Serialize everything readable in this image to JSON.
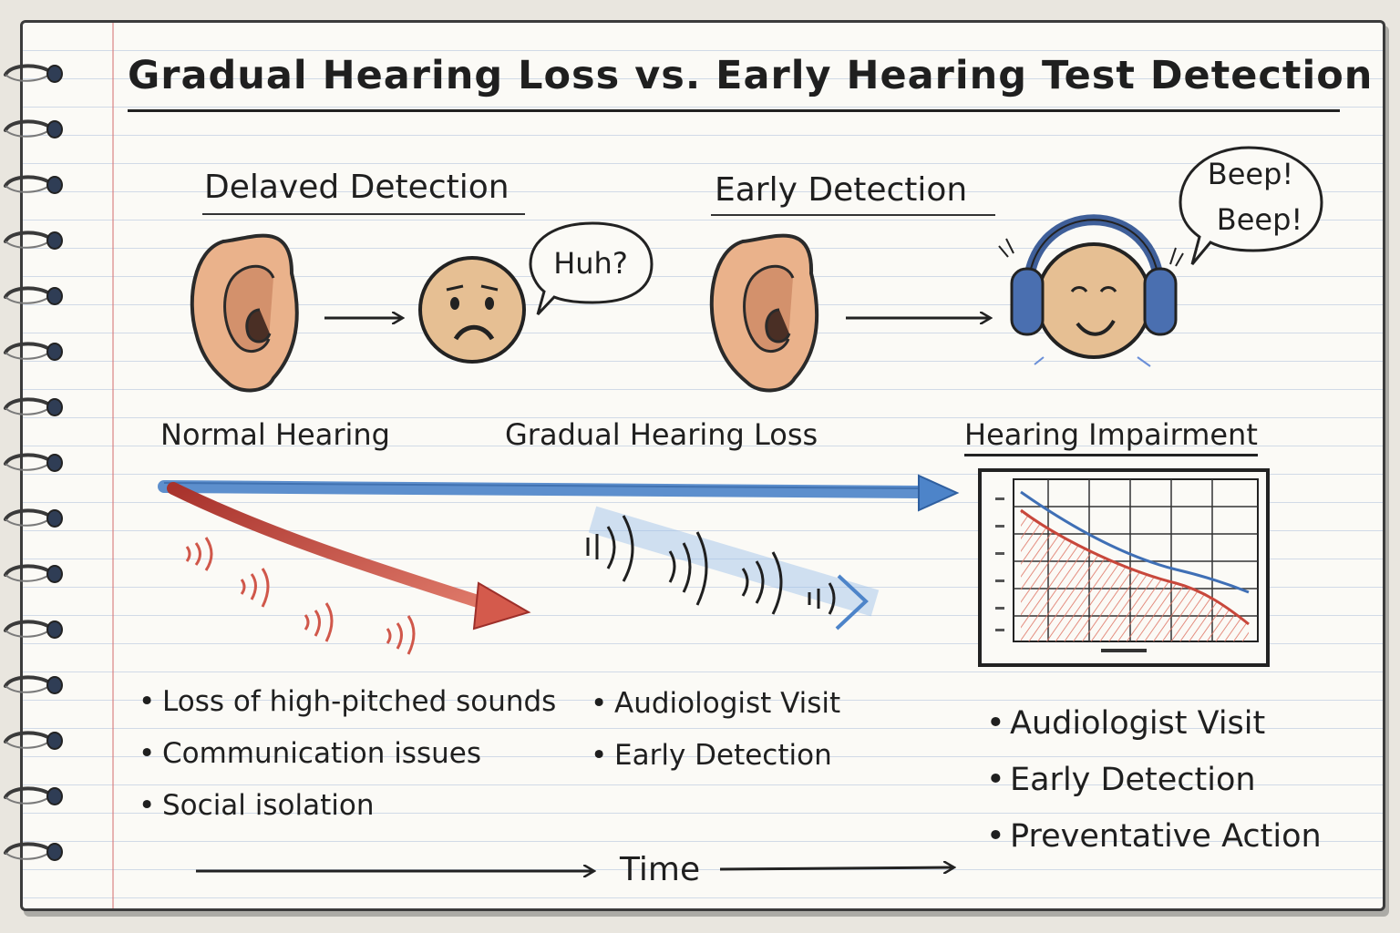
{
  "title": "Gradual Hearing Loss vs. Early Hearing Test Detection",
  "headers": {
    "delayed": "Delaved Detection",
    "early": "Early Detection"
  },
  "speech": {
    "huh": "Huh?",
    "beep1": "Beep!",
    "beep2": "Beep!"
  },
  "stages": {
    "normal": "Normal Hearing",
    "gradual": "Gradual Hearing Loss",
    "impairment": "Hearing Impairment"
  },
  "bullets_delayed": [
    "Loss of high-pitched sounds",
    "Communication issues",
    "Social isolation"
  ],
  "bullets_middle": [
    "Audiologist Visit",
    "Early Detection"
  ],
  "bullets_right": [
    "Audiologist Visit",
    "Early Detection",
    "Preventative Action"
  ],
  "time_label": "Time",
  "colors": {
    "ink": "#1f1f1f",
    "red_arrow": "#c8473b",
    "blue_arrow": "#4d84c9",
    "skin": "#e8b48e",
    "headphones": "#4a6fb0"
  },
  "icons": [
    "ear-icon",
    "sad-face-icon",
    "speech-bubble-icon",
    "headphones-face-icon",
    "audiogram-icon",
    "sound-wave-icon",
    "arrow-icon"
  ]
}
